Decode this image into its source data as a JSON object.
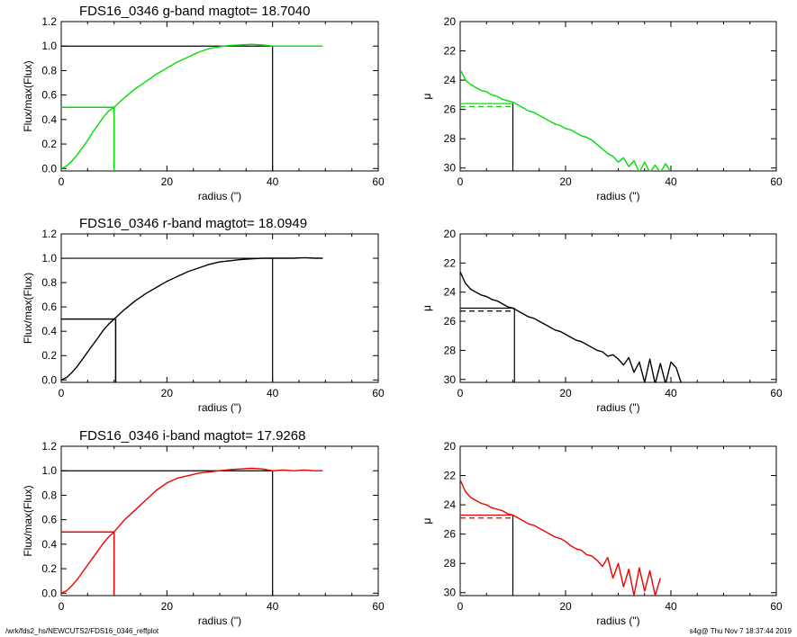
{
  "footer": {
    "path": "/wrk/fds2_hs/NEWCUTS2/FDS16_0346_reffplot",
    "stamp": "s4g@  Thu Nov  7 18:37:44 2019"
  },
  "chart_data": [
    {
      "panel": "g-growth",
      "type": "line",
      "title": "FDS16_0346 g-band  magtot=      18.7040",
      "xlabel": "radius (\")",
      "ylabel": "Flux/max(Flux)",
      "xlim": [
        0,
        60
      ],
      "ylim": [
        -0.02,
        1.2
      ],
      "xticks": [
        0,
        20,
        40,
        60
      ],
      "yticks": [
        0.0,
        0.2,
        0.4,
        0.6,
        0.8,
        1.0,
        1.2
      ],
      "color": "#00dd00",
      "half_radius": 10.0,
      "total_radius": 40.0,
      "series": [
        {
          "x": [
            0,
            1,
            2,
            3,
            4,
            5,
            6,
            7,
            8,
            9,
            10,
            11,
            12,
            14,
            16,
            18,
            20,
            22,
            24,
            26,
            28,
            30,
            32,
            34,
            36,
            38,
            40,
            42,
            44,
            46,
            48,
            49.5
          ],
          "y": [
            0.0,
            0.02,
            0.06,
            0.11,
            0.17,
            0.23,
            0.3,
            0.36,
            0.42,
            0.47,
            0.5,
            0.54,
            0.58,
            0.65,
            0.71,
            0.77,
            0.82,
            0.87,
            0.91,
            0.95,
            0.98,
            0.995,
            1.005,
            1.01,
            1.015,
            1.01,
            1.0,
            1.0,
            1.0,
            1.0,
            1.0,
            1.0
          ]
        }
      ]
    },
    {
      "panel": "g-profile",
      "type": "line",
      "title": "",
      "xlabel": "radius (\")",
      "ylabel": "μ",
      "xlim": [
        0,
        60
      ],
      "ylim": [
        30.2,
        20
      ],
      "xticks": [
        0,
        20,
        40,
        60
      ],
      "yticks": [
        20,
        22,
        24,
        26,
        28,
        30
      ],
      "color": "#00dd00",
      "half_radius": 10.0,
      "mu_eff": 25.6,
      "mu_mean": 25.8,
      "series": [
        {
          "x": [
            0,
            0.5,
            1,
            2,
            3,
            4,
            5,
            6,
            7,
            8,
            9,
            10,
            11,
            12,
            13,
            14,
            15,
            16,
            17,
            18,
            19,
            20,
            21,
            22,
            23,
            24,
            25,
            26,
            27,
            28,
            29,
            30,
            31,
            32,
            33,
            34,
            35,
            36,
            37,
            38,
            39,
            40
          ],
          "y": [
            23.3,
            23.6,
            24.0,
            24.3,
            24.5,
            24.7,
            24.8,
            25.0,
            25.1,
            25.3,
            25.4,
            25.5,
            25.7,
            25.9,
            26.1,
            26.2,
            26.4,
            26.6,
            26.8,
            27.0,
            27.1,
            27.3,
            27.4,
            27.6,
            27.8,
            27.9,
            28.1,
            28.4,
            28.7,
            29.0,
            29.2,
            29.6,
            29.3,
            29.9,
            29.5,
            30.3,
            29.6,
            30.3,
            29.8,
            30.3,
            29.7,
            30.3
          ]
        }
      ]
    },
    {
      "panel": "r-growth",
      "type": "line",
      "title": "FDS16_0346 r-band  magtot=      18.0949",
      "xlabel": "radius (\")",
      "ylabel": "Flux/max(Flux)",
      "xlim": [
        0,
        60
      ],
      "ylim": [
        -0.02,
        1.2
      ],
      "xticks": [
        0,
        20,
        40,
        60
      ],
      "yticks": [
        0.0,
        0.2,
        0.4,
        0.6,
        0.8,
        1.0,
        1.2
      ],
      "color": "#000000",
      "half_radius": 10.3,
      "total_radius": 40.0,
      "series": [
        {
          "x": [
            0,
            1,
            2,
            3,
            4,
            5,
            6,
            7,
            8,
            9,
            10,
            11,
            12,
            14,
            16,
            18,
            20,
            22,
            24,
            26,
            28,
            30,
            32,
            34,
            36,
            38,
            40,
            42,
            44,
            46,
            48,
            49.5
          ],
          "y": [
            0.0,
            0.02,
            0.06,
            0.11,
            0.17,
            0.23,
            0.29,
            0.35,
            0.41,
            0.46,
            0.5,
            0.54,
            0.58,
            0.65,
            0.71,
            0.76,
            0.81,
            0.85,
            0.89,
            0.92,
            0.95,
            0.97,
            0.98,
            0.99,
            0.995,
            1.0,
            1.0,
            1.0,
            1.0,
            1.005,
            1.0,
            1.0
          ]
        }
      ]
    },
    {
      "panel": "r-profile",
      "type": "line",
      "title": "",
      "xlabel": "radius (\")",
      "ylabel": "μ",
      "xlim": [
        0,
        60
      ],
      "ylim": [
        30.2,
        20
      ],
      "xticks": [
        0,
        20,
        40,
        60
      ],
      "yticks": [
        20,
        22,
        24,
        26,
        28,
        30
      ],
      "color": "#000000",
      "half_radius": 10.3,
      "mu_eff": 25.1,
      "mu_mean": 25.3,
      "series": [
        {
          "x": [
            0,
            0.5,
            1,
            2,
            3,
            4,
            5,
            6,
            7,
            8,
            9,
            10,
            11,
            12,
            13,
            14,
            15,
            16,
            17,
            18,
            19,
            20,
            21,
            22,
            23,
            24,
            25,
            26,
            27,
            28,
            29,
            30,
            31,
            32,
            33,
            34,
            35,
            36,
            37,
            38,
            39,
            40,
            41,
            42
          ],
          "y": [
            22.6,
            23.0,
            23.4,
            23.8,
            24.0,
            24.2,
            24.3,
            24.5,
            24.6,
            24.8,
            25.0,
            25.1,
            25.3,
            25.5,
            25.7,
            25.8,
            26.0,
            26.2,
            26.4,
            26.6,
            26.7,
            26.9,
            27.1,
            27.3,
            27.4,
            27.6,
            27.8,
            28.0,
            28.1,
            28.4,
            28.3,
            28.6,
            29.0,
            28.5,
            29.5,
            28.8,
            30.2,
            28.6,
            30.3,
            28.9,
            30.3,
            28.8,
            29.2,
            30.3
          ]
        }
      ]
    },
    {
      "panel": "i-growth",
      "type": "line",
      "title": "FDS16_0346 i-band  magtot=      17.9268",
      "xlabel": "radius (\")",
      "ylabel": "Flux/max(Flux)",
      "xlim": [
        0,
        60
      ],
      "ylim": [
        -0.02,
        1.2
      ],
      "xticks": [
        0,
        20,
        40,
        60
      ],
      "yticks": [
        0.0,
        0.2,
        0.4,
        0.6,
        0.8,
        1.0,
        1.2
      ],
      "color": "#ee0000",
      "half_radius": 10.0,
      "total_radius": 40.0,
      "series": [
        {
          "x": [
            0,
            1,
            2,
            3,
            4,
            5,
            6,
            7,
            8,
            9,
            10,
            11,
            12,
            14,
            16,
            18,
            20,
            22,
            24,
            26,
            28,
            30,
            32,
            34,
            36,
            38,
            40,
            42,
            44,
            46,
            48,
            49.5
          ],
          "y": [
            0.0,
            0.02,
            0.06,
            0.11,
            0.17,
            0.23,
            0.29,
            0.35,
            0.41,
            0.46,
            0.5,
            0.55,
            0.6,
            0.68,
            0.76,
            0.84,
            0.9,
            0.94,
            0.96,
            0.98,
            0.99,
            1.0,
            1.01,
            1.015,
            1.02,
            1.015,
            1.0,
            1.005,
            1.0,
            1.005,
            1.0,
            1.0
          ]
        }
      ]
    },
    {
      "panel": "i-profile",
      "type": "line",
      "title": "",
      "xlabel": "radius (\")",
      "ylabel": "μ",
      "xlim": [
        0,
        60
      ],
      "ylim": [
        30.2,
        20
      ],
      "xticks": [
        0,
        20,
        40,
        60
      ],
      "yticks": [
        20,
        22,
        24,
        26,
        28,
        30
      ],
      "color": "#ee0000",
      "half_radius": 10.0,
      "mu_eff": 24.7,
      "mu_mean": 24.9,
      "series": [
        {
          "x": [
            0,
            0.5,
            1,
            2,
            3,
            4,
            5,
            6,
            7,
            8,
            9,
            10,
            11,
            12,
            13,
            14,
            15,
            16,
            17,
            18,
            19,
            20,
            21,
            22,
            23,
            24,
            25,
            26,
            27,
            28,
            29,
            30,
            31,
            32,
            33,
            34,
            35,
            36,
            37,
            38
          ],
          "y": [
            22.3,
            22.7,
            23.1,
            23.5,
            23.7,
            23.9,
            24.0,
            24.2,
            24.3,
            24.4,
            24.6,
            24.7,
            24.9,
            25.1,
            25.3,
            25.4,
            25.6,
            25.8,
            26.0,
            26.2,
            26.3,
            26.5,
            26.8,
            27.0,
            27.1,
            27.4,
            27.5,
            27.8,
            28.2,
            27.6,
            29.0,
            28.0,
            29.6,
            28.4,
            30.2,
            28.3,
            29.9,
            28.5,
            30.2,
            29.0
          ]
        }
      ]
    }
  ]
}
